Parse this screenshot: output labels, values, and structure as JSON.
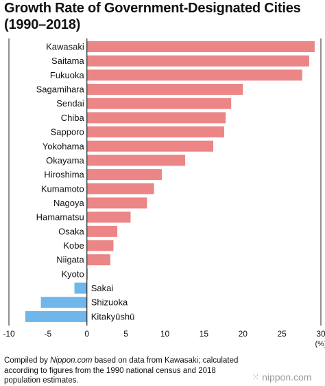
{
  "chart_data": {
    "type": "bar",
    "orientation": "horizontal",
    "title_line1": "Growth Rate of Government-Designated Cities",
    "title_line2": "(1990–2018)",
    "unit_label": "(%)",
    "xlim": [
      -10,
      30
    ],
    "x_ticks": [
      -10,
      -5,
      0,
      5,
      10,
      15,
      20,
      25,
      30
    ],
    "x_tick_labels": [
      "-10",
      "-5",
      "0",
      "5",
      "10",
      "15",
      "20",
      "25",
      "30"
    ],
    "categories": [
      "Kawasaki",
      "Saitama",
      "Fukuoka",
      "Sagamihara",
      "Sendai",
      "Chiba",
      "Sapporo",
      "Yokohama",
      "Okayama",
      "Hiroshima",
      "Kumamoto",
      "Nagoya",
      "Hamamatsu",
      "Osaka",
      "Kobe",
      "Niigata",
      "Kyoto",
      "Sakai",
      "Shizuoka",
      "Kitakyūshū"
    ],
    "values": [
      29.2,
      28.5,
      27.6,
      20.0,
      18.5,
      17.8,
      17.6,
      16.2,
      12.6,
      9.6,
      8.6,
      7.7,
      5.6,
      3.9,
      3.4,
      3.0,
      0.1,
      -1.6,
      -5.9,
      -7.9
    ],
    "colors": {
      "positive": "#ec8585",
      "negative": "#6fb6ea"
    }
  },
  "footnote": {
    "prefix": "Compiled by ",
    "source": "Nippon.com",
    "rest": " based on data from Kawasaki; calculated according to figures from the 1990 national census and 2018 population estimates."
  },
  "logo": {
    "mark": "⁙",
    "text": "nippon.com"
  }
}
